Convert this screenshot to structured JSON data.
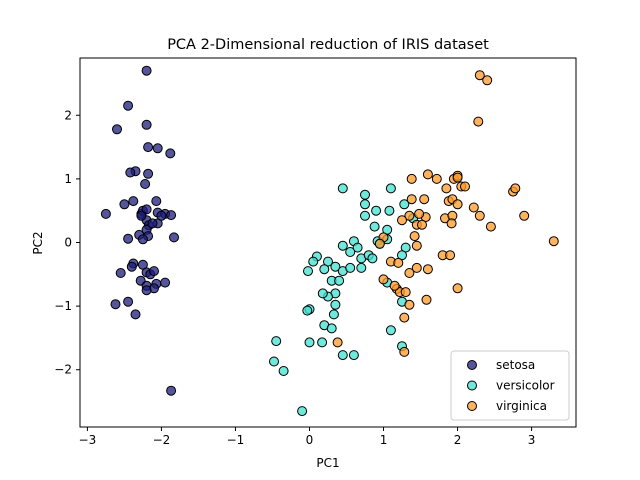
{
  "chart_data": {
    "type": "scatter",
    "title": "PCA 2-Dimensional reduction of IRIS dataset",
    "xlabel": "PC1",
    "ylabel": "PC2",
    "xlim": [
      -3.1,
      3.6
    ],
    "ylim": [
      -2.9,
      2.9
    ],
    "xticks": [
      -3,
      -2,
      -1,
      0,
      1,
      2,
      3
    ],
    "yticks": [
      -2,
      -1,
      0,
      1,
      2
    ],
    "grid": false,
    "legend": "lower-right",
    "series": [
      {
        "name": "setosa",
        "color": "#1c1c7a",
        "points": [
          [
            -2.2,
            2.7
          ],
          [
            -2.45,
            2.15
          ],
          [
            -2.6,
            1.78
          ],
          [
            -2.2,
            1.85
          ],
          [
            -2.18,
            1.5
          ],
          [
            -2.05,
            1.48
          ],
          [
            -1.88,
            1.4
          ],
          [
            -2.35,
            1.12
          ],
          [
            -2.18,
            1.08
          ],
          [
            -2.22,
            0.92
          ],
          [
            -2.38,
            0.65
          ],
          [
            -2.5,
            0.6
          ],
          [
            -2.07,
            0.65
          ],
          [
            -2.27,
            0.45
          ],
          [
            -2.25,
            0.5
          ],
          [
            -2.2,
            0.52
          ],
          [
            -2.05,
            0.47
          ],
          [
            -1.95,
            0.45
          ],
          [
            -1.87,
            0.43
          ],
          [
            -2.75,
            0.45
          ],
          [
            -2.2,
            0.35
          ],
          [
            -2.05,
            0.3
          ],
          [
            -2.17,
            0.27
          ],
          [
            -2.2,
            0.2
          ],
          [
            -2.3,
            0.12
          ],
          [
            -2.18,
            0.1
          ],
          [
            -2.45,
            0.06
          ],
          [
            -2.25,
            0.05
          ],
          [
            -1.83,
            0.08
          ],
          [
            -2.38,
            -0.33
          ],
          [
            -2.4,
            -0.38
          ],
          [
            -2.25,
            -0.35
          ],
          [
            -2.55,
            -0.48
          ],
          [
            -2.2,
            -0.47
          ],
          [
            -2.15,
            -0.5
          ],
          [
            -2.1,
            -0.45
          ],
          [
            -2.28,
            -0.6
          ],
          [
            -2.2,
            -0.68
          ],
          [
            -2.07,
            -0.65
          ],
          [
            -1.95,
            -0.63
          ],
          [
            -2.1,
            -0.72
          ],
          [
            -2.2,
            -0.75
          ],
          [
            -2.62,
            -0.97
          ],
          [
            -2.45,
            -0.93
          ],
          [
            -2.35,
            -1.13
          ],
          [
            -1.87,
            -2.33
          ],
          [
            -2.42,
            1.1
          ],
          [
            -2.27,
            0.42
          ],
          [
            -2.12,
            0.3
          ],
          [
            -2.0,
            0.42
          ]
        ]
      },
      {
        "name": "versicolor",
        "color": "#40e0d0",
        "points": [
          [
            0.45,
            0.85
          ],
          [
            0.75,
            0.75
          ],
          [
            1.1,
            0.85
          ],
          [
            0.75,
            0.6
          ],
          [
            0.9,
            0.5
          ],
          [
            1.08,
            0.5
          ],
          [
            1.28,
            0.6
          ],
          [
            1.4,
            0.38
          ],
          [
            0.75,
            0.42
          ],
          [
            0.88,
            0.25
          ],
          [
            1.05,
            0.2
          ],
          [
            0.92,
            0.02
          ],
          [
            0.95,
            -0.02
          ],
          [
            1.05,
            0.05
          ],
          [
            0.6,
            0.02
          ],
          [
            0.65,
            -0.08
          ],
          [
            0.45,
            -0.05
          ],
          [
            0.55,
            -0.15
          ],
          [
            0.7,
            -0.25
          ],
          [
            0.8,
            -0.2
          ],
          [
            0.85,
            -0.25
          ],
          [
            1.3,
            -0.08
          ],
          [
            1.25,
            -0.2
          ],
          [
            0.25,
            -0.3
          ],
          [
            0.2,
            -0.42
          ],
          [
            0.35,
            -0.38
          ],
          [
            0.1,
            -0.22
          ],
          [
            0.05,
            -0.3
          ],
          [
            -0.02,
            -0.45
          ],
          [
            0.3,
            -0.6
          ],
          [
            0.45,
            -0.45
          ],
          [
            0.55,
            -0.4
          ],
          [
            0.7,
            -0.4
          ],
          [
            0.35,
            -0.8
          ],
          [
            0.25,
            -0.85
          ],
          [
            0.4,
            -0.6
          ],
          [
            0.18,
            -0.8
          ],
          [
            0.35,
            -0.98
          ],
          [
            0.0,
            -1.05
          ],
          [
            -0.03,
            -1.07
          ],
          [
            0.33,
            -1.13
          ],
          [
            0.2,
            -1.3
          ],
          [
            0.3,
            -1.35
          ],
          [
            0.0,
            -1.57
          ],
          [
            0.17,
            -1.57
          ],
          [
            0.45,
            -1.77
          ],
          [
            0.6,
            -1.77
          ],
          [
            -0.45,
            -1.55
          ],
          [
            -0.48,
            -1.87
          ],
          [
            -0.35,
            -2.02
          ],
          [
            -0.1,
            -2.65
          ],
          [
            1.05,
            -0.63
          ],
          [
            1.25,
            -0.93
          ],
          [
            1.1,
            -1.38
          ],
          [
            1.25,
            -1.63
          ]
        ]
      },
      {
        "name": "virginica",
        "color": "#ff9a2a",
        "points": [
          [
            2.3,
            2.63
          ],
          [
            2.4,
            2.55
          ],
          [
            2.28,
            1.9
          ],
          [
            1.38,
            1.0
          ],
          [
            1.6,
            1.07
          ],
          [
            1.72,
            1.0
          ],
          [
            1.95,
            1.0
          ],
          [
            2.0,
            1.05
          ],
          [
            2.05,
            0.88
          ],
          [
            1.85,
            0.85
          ],
          [
            2.1,
            0.88
          ],
          [
            2.75,
            0.8
          ],
          [
            2.78,
            0.85
          ],
          [
            1.38,
            0.68
          ],
          [
            1.55,
            0.68
          ],
          [
            1.88,
            0.65
          ],
          [
            1.93,
            0.68
          ],
          [
            2.0,
            0.6
          ],
          [
            2.22,
            0.55
          ],
          [
            1.35,
            0.42
          ],
          [
            1.57,
            0.4
          ],
          [
            1.83,
            0.38
          ],
          [
            1.93,
            0.42
          ],
          [
            2.3,
            0.42
          ],
          [
            1.45,
            0.28
          ],
          [
            1.52,
            0.28
          ],
          [
            1.92,
            0.3
          ],
          [
            2.45,
            0.25
          ],
          [
            2.9,
            0.42
          ],
          [
            3.3,
            0.02
          ],
          [
            1.0,
            0.08
          ],
          [
            0.95,
            -0.02
          ],
          [
            1.25,
            0.35
          ],
          [
            1.42,
            0.1
          ],
          [
            1.45,
            -0.05
          ],
          [
            1.45,
            -0.4
          ],
          [
            1.6,
            -0.42
          ],
          [
            1.35,
            -0.48
          ],
          [
            1.8,
            -0.2
          ],
          [
            1.9,
            -0.2
          ],
          [
            1.1,
            -0.3
          ],
          [
            1.2,
            -0.32
          ],
          [
            1.18,
            -0.73
          ],
          [
            1.22,
            -0.78
          ],
          [
            1.3,
            -0.78
          ],
          [
            1.35,
            -0.98
          ],
          [
            1.0,
            -0.58
          ],
          [
            1.15,
            -0.68
          ],
          [
            1.58,
            -0.9
          ],
          [
            2.0,
            -0.72
          ],
          [
            1.28,
            -1.18
          ],
          [
            0.38,
            -1.57
          ],
          [
            1.28,
            -1.72
          ],
          [
            2.0,
            1.02
          ],
          [
            1.48,
            0.45
          ]
        ]
      }
    ]
  }
}
